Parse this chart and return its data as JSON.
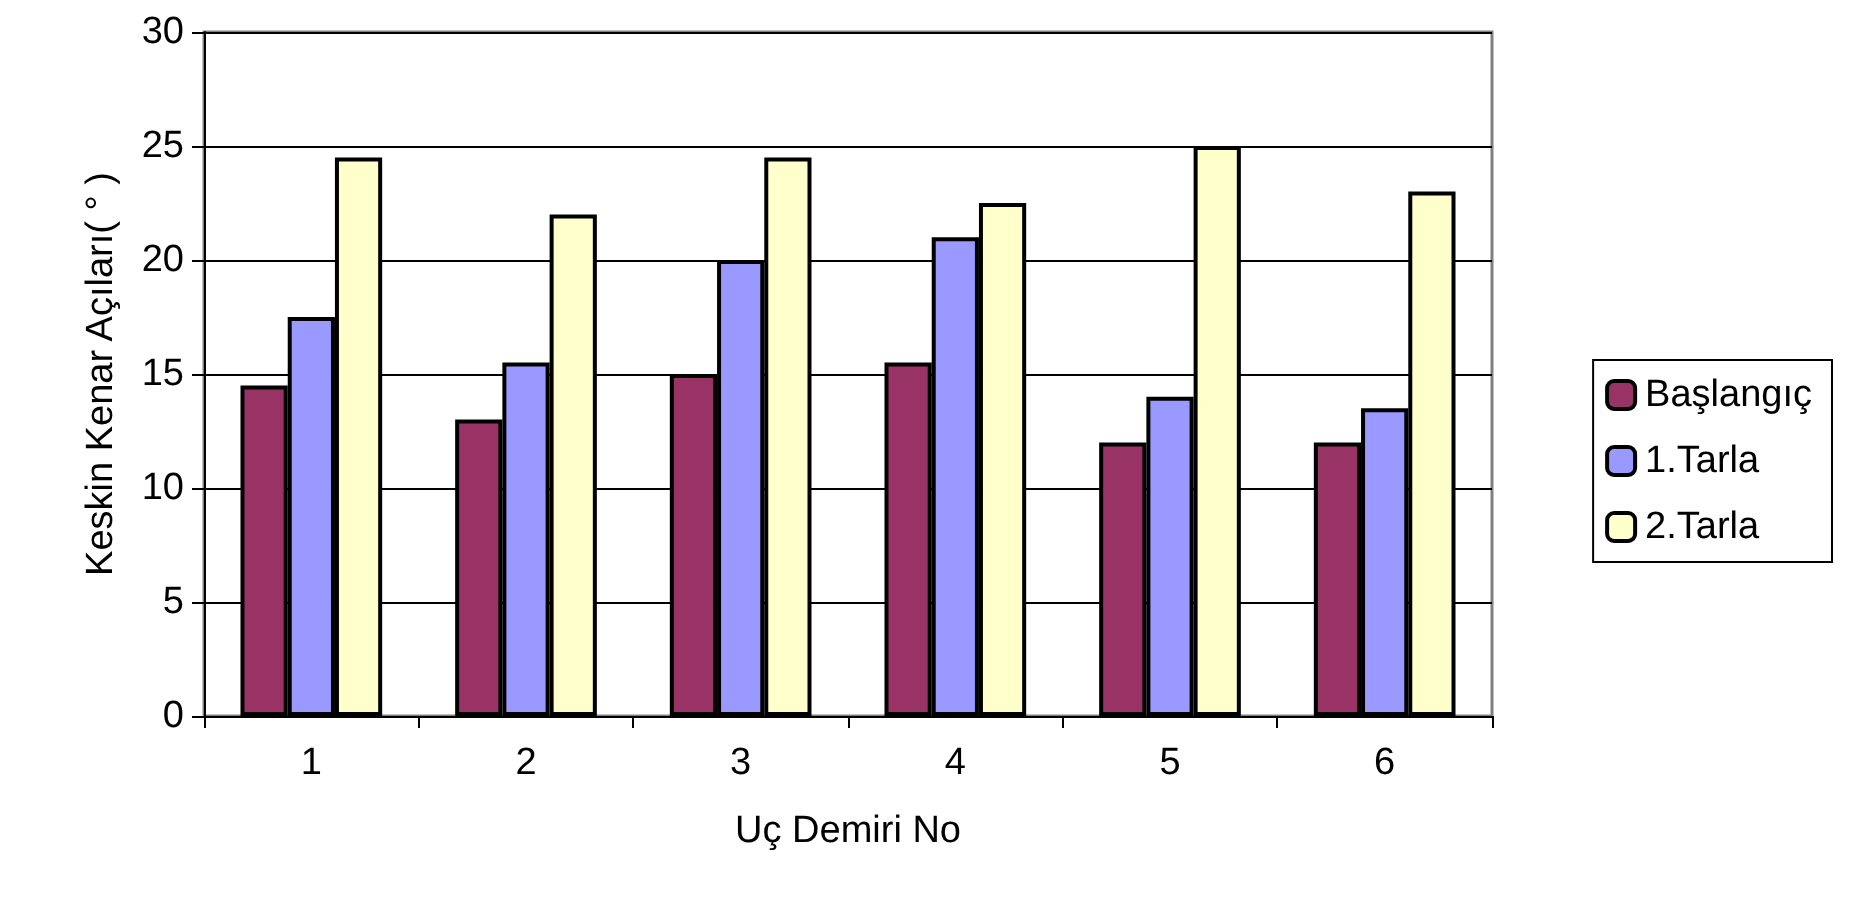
{
  "chart_data": {
    "type": "bar",
    "xlabel": "Uç Demiri No",
    "ylabel": "Keskin Kenar Açıları( ° )",
    "categories": [
      "1",
      "2",
      "3",
      "4",
      "5",
      "6"
    ],
    "series": [
      {
        "name": "Başlangıç",
        "color": "#993366",
        "values": [
          14.5,
          13,
          15,
          15.5,
          12,
          12
        ]
      },
      {
        "name": "1.Tarla",
        "color": "#9999ff",
        "values": [
          17.5,
          15.5,
          20,
          21,
          14,
          13.5
        ]
      },
      {
        "name": "2.Tarla",
        "color": "#ffffcc",
        "values": [
          24.5,
          22,
          24.5,
          22.5,
          25,
          23
        ]
      }
    ],
    "ylim": [
      0,
      30
    ],
    "yticks": [
      0,
      5,
      10,
      15,
      20,
      25,
      30
    ],
    "grid": "y",
    "legend": "right"
  }
}
